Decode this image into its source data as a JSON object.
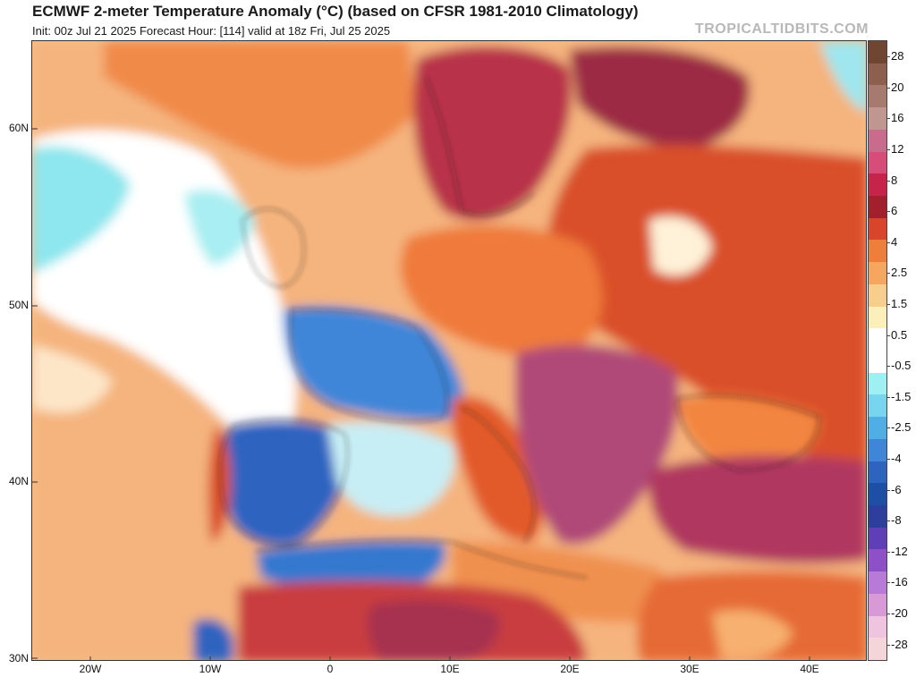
{
  "header": {
    "title": "ECMWF 2-meter Temperature Anomaly (°C) (based on CFSR 1981-2010 Climatology)",
    "subtitle": "Init: 00z Jul 21 2025   Forecast Hour: [114]   valid at 18z Fri, Jul 25 2025",
    "watermark": "TROPICALTIDBITS.COM"
  },
  "map": {
    "latitude_labels": [
      "60N",
      "50N",
      "40N",
      "30N"
    ],
    "longitude_labels": [
      "20W",
      "10W",
      "0",
      "10E",
      "20E",
      "30E",
      "40E"
    ],
    "regions": [
      {
        "name": "atlantic-background",
        "color": "#f5b47e"
      },
      {
        "name": "atlantic-cool",
        "color": "#ffffff"
      },
      {
        "name": "north-sea-cool",
        "color": "#8ee6ee"
      },
      {
        "name": "france-cold",
        "color": "#3f86d8"
      },
      {
        "name": "iberia-cold",
        "color": "#2e64c0"
      },
      {
        "name": "mediterranean-cool",
        "color": "#c7eef5"
      },
      {
        "name": "north-africa-cold",
        "color": "#3478cf"
      },
      {
        "name": "scandinavia-warm",
        "color": "#b8314a"
      },
      {
        "name": "finland-warm",
        "color": "#9c2a45"
      },
      {
        "name": "balkans-warm",
        "color": "#b04a78"
      },
      {
        "name": "turkey-warm",
        "color": "#b03860"
      },
      {
        "name": "eastern-europe-warm",
        "color": "#d9502a"
      },
      {
        "name": "italy-warm",
        "color": "#e25a2c"
      },
      {
        "name": "sahara-warm",
        "color": "#c93c3f"
      }
    ]
  },
  "colorbar": {
    "labels": [
      "28",
      "20",
      "16",
      "12",
      "8",
      "6",
      "4",
      "2.5",
      "1.5",
      "0.5",
      "-0.5",
      "-1.5",
      "-2.5",
      "-4",
      "-6",
      "-8",
      "-12",
      "-16",
      "-20",
      "-28"
    ],
    "colors": [
      "#6e4632",
      "#8c5f4e",
      "#a67a6e",
      "#bf9690",
      "#c96b8c",
      "#d84c7a",
      "#c6244a",
      "#a41f2e",
      "#d8452a",
      "#ee7e3a",
      "#f6a65e",
      "#f8ce8d",
      "#fbf0bc",
      "#ffffff",
      "#ffffff",
      "#9ff0f2",
      "#77d6ee",
      "#4faee6",
      "#3f86d8",
      "#2e64c0",
      "#1e4ea6",
      "#2e3e9e",
      "#5f3fb8",
      "#8e50c8",
      "#b77ad6",
      "#d79ad6",
      "#eec4df",
      "#f4d6da"
    ]
  }
}
